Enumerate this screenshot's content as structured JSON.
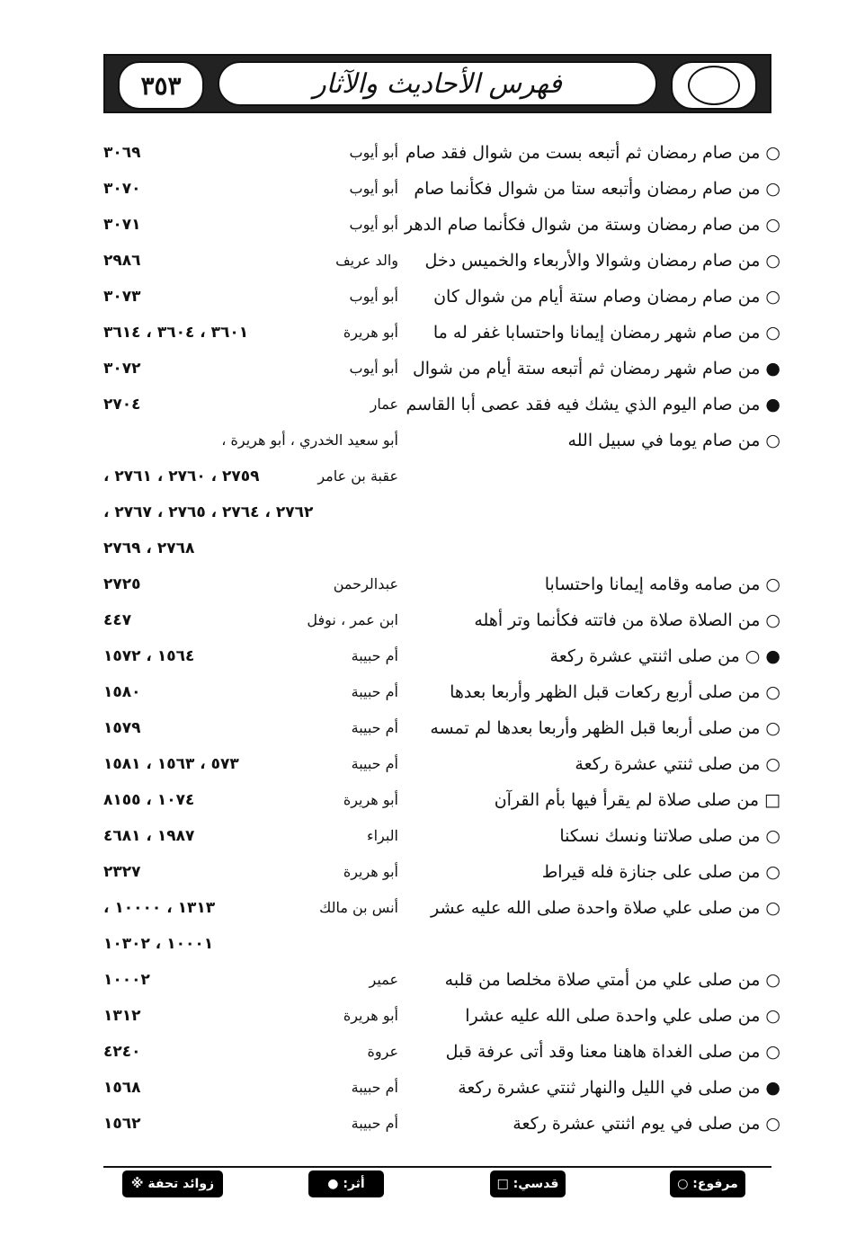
{
  "header": {
    "title": "فهرس الأحاديث والآثار",
    "page_number": "٣٥٣"
  },
  "rows": [
    {
      "text": "○ من صام رمضان ثم أتبعه بست من شوال فقد صام",
      "narrator": "أبو أيوب",
      "numbers": "٣٠٦٩"
    },
    {
      "text": "○ من صام رمضان وأتبعه ستا من شوال فكأنما صام",
      "narrator": "أبو أيوب",
      "numbers": "٣٠٧٠"
    },
    {
      "text": "○ من صام رمضان وستة من شوال فكأنما صام الدهر",
      "narrator": "أبو أيوب",
      "numbers": "٣٠٧١"
    },
    {
      "text": "○ من صام رمضان وشوالا والأربعاء والخميس دخل",
      "narrator": "والد عريف",
      "numbers": "٢٩٨٦"
    },
    {
      "text": "○ من صام رمضان وصام ستة أيام من شوال كان",
      "narrator": "أبو أيوب",
      "numbers": "٣٠٧٣"
    },
    {
      "text": "○ من صام شهر رمضان إيمانا واحتسابا غفر له ما",
      "narrator": "أبو هريرة",
      "numbers": "٣٦٠١ ، ٣٦٠٤ ، ٣٦١٤"
    },
    {
      "text": "● من صام شهر رمضان ثم أتبعه ستة أيام من شوال",
      "narrator": "أبو أيوب",
      "numbers": "٣٠٧٢"
    },
    {
      "text": "● من صام اليوم الذي يشك فيه فقد عصى أبا القاسم",
      "narrator": "عمار",
      "numbers": "٢٧٠٤"
    },
    {
      "text": "○ من صام يوما في سبيل الله",
      "narrator": "أبو سعيد الخدري ، أبو هريرة ،",
      "numbers": ""
    },
    {
      "text": "",
      "narrator": "عقبة بن عامر",
      "numbers": "٢٧٥٩ ، ٢٧٦٠ ، ٢٧٦١ ،"
    },
    {
      "text": "",
      "narrator": "",
      "numbers": "٢٧٦٢ ، ٢٧٦٤ ، ٢٧٦٥ ، ٢٧٦٧ ،"
    },
    {
      "text": "",
      "narrator": "",
      "numbers": "٢٧٦٨ ، ٢٧٦٩"
    },
    {
      "text": "○ من صامه وقامه إيمانا واحتسابا",
      "narrator": "عبدالرحمن",
      "numbers": "٢٧٢٥"
    },
    {
      "text": "○ من الصلاة صلاة من فاتته فكأنما وتر أهله",
      "narrator": "ابن عمر ، نوفل",
      "numbers": "٤٤٧"
    },
    {
      "text": "● ○ من صلى اثنتي عشرة ركعة",
      "narrator": "أم حبيبة",
      "numbers": "١٥٦٤ ، ١٥٧٢"
    },
    {
      "text": "○ من صلى أربع ركعات قبل الظهر وأربعا بعدها",
      "narrator": "أم حبيبة",
      "numbers": "١٥٨٠"
    },
    {
      "text": "○ من صلى أربعا قبل الظهر وأربعا بعدها لم تمسه",
      "narrator": "أم حبيبة",
      "numbers": "١٥٧٩"
    },
    {
      "text": "○ من صلى ثنتي عشرة ركعة",
      "narrator": "أم حبيبة",
      "numbers": "٥٧٣ ، ١٥٦٣ ، ١٥٨١"
    },
    {
      "text": "□ من صلى صلاة لم يقرأ فيها بأم القرآن",
      "narrator": "أبو هريرة",
      "numbers": "١٠٧٤ ، ٨١٥٥"
    },
    {
      "text": "○ من صلى صلاتنا ونسك نسكنا",
      "narrator": "البراء",
      "numbers": "١٩٨٧ ، ٤٦٨١"
    },
    {
      "text": "○ من صلى على جنازة فله قيراط",
      "narrator": "أبو هريرة",
      "numbers": "٢٣٢٧"
    },
    {
      "text": "○ من صلى علي صلاة واحدة صلى الله عليه عشر",
      "narrator": "أنس بن مالك",
      "numbers": "١٣١٣ ، ١٠٠٠٠ ،"
    },
    {
      "text": "",
      "narrator": "",
      "numbers": "١٠٠٠١ ، ١٠٣٠٢"
    },
    {
      "text": "○ من صلى علي من أمتي صلاة مخلصا من قلبه",
      "narrator": "عمير",
      "numbers": "١٠٠٠٢"
    },
    {
      "text": "○ من صلى علي واحدة صلى الله عليه عشرا",
      "narrator": "أبو هريرة",
      "numbers": "١٣١٢"
    },
    {
      "text": "○ من صلى الغداة هاهنا معنا وقد أتى عرفة قبل",
      "narrator": "عروة",
      "numbers": "٤٢٤٠"
    },
    {
      "text": "● من صلى في الليل والنهار ثنتي عشرة ركعة",
      "narrator": "أم حبيبة",
      "numbers": "١٥٦٨"
    },
    {
      "text": "○ من صلى في يوم اثنتي عشرة ركعة",
      "narrator": "أم حبيبة",
      "numbers": "١٥٦٢"
    }
  ],
  "legend": {
    "marfu": "مرفوع: ○",
    "qudsi": "قدسي: □",
    "athar": "أثر: ●",
    "zawaid": "زوائد تحفة ※"
  }
}
